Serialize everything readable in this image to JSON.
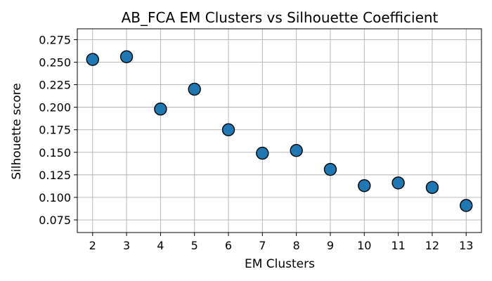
{
  "chart_data": {
    "type": "scatter",
    "title": "AB_FCA EM Clusters vs Silhouette Coefficient",
    "xlabel": "EM Clusters",
    "ylabel": "Silhouette score",
    "x": [
      2,
      3,
      4,
      5,
      6,
      7,
      8,
      9,
      10,
      11,
      12,
      13
    ],
    "y": [
      0.253,
      0.256,
      0.198,
      0.22,
      0.175,
      0.149,
      0.152,
      0.131,
      0.113,
      0.116,
      0.111,
      0.091
    ],
    "xlim": [
      1.55,
      13.45
    ],
    "ylim": [
      0.061,
      0.287
    ],
    "xticks": [
      2,
      3,
      4,
      5,
      6,
      7,
      8,
      9,
      10,
      11,
      12,
      13
    ],
    "yticks": [
      0.075,
      0.1,
      0.125,
      0.15,
      0.175,
      0.2,
      0.225,
      0.25,
      0.275
    ],
    "ytick_labels": [
      "0.075",
      "0.100",
      "0.125",
      "0.150",
      "0.175",
      "0.200",
      "0.225",
      "0.250",
      "0.275"
    ],
    "grid": true,
    "marker_color": "#1f77b4",
    "marker_edge_color": "#000000"
  }
}
